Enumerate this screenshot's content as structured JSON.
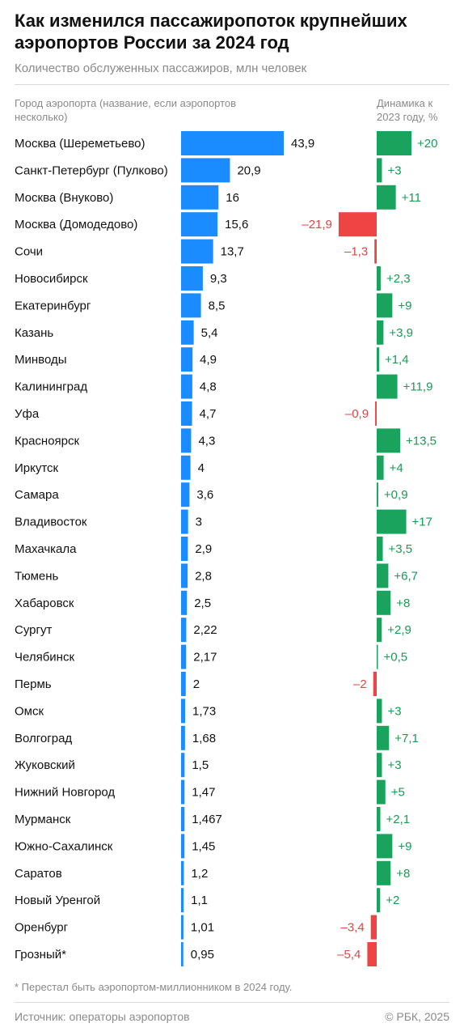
{
  "title": "Как изменился пассажиропоток крупнейших аэропортов России за 2024 год",
  "subtitle": "Количество обслуженных пассажиров, млн человек",
  "headers": {
    "city": "Город аэропорта (название, если аэропортов несколько)",
    "dynamics": "Динамика к 2023 году, %"
  },
  "footnote": "* Перестал быть аэропортом-миллионником в 2024 году.",
  "source": "Источник: операторы аэропортов",
  "copyright": "© РБК, 2025",
  "colors": {
    "passengers_bar": "#1a8cff",
    "growth_bar": "#1aa35c",
    "decline_bar": "#ee4444",
    "growth_text": "#1a9a55",
    "decline_text": "#e04444"
  },
  "chart_data": {
    "type": "bar",
    "orientation": "horizontal",
    "categories": [
      "Москва (Шереметьево)",
      "Санкт-Петербург (Пулково)",
      "Москва (Внуково)",
      "Москва (Домодедово)",
      "Сочи",
      "Новосибирск",
      "Екатеринбург",
      "Казань",
      "Минводы",
      "Калининград",
      "Уфа",
      "Красноярск",
      "Иркутск",
      "Самара",
      "Владивосток",
      "Махачкала",
      "Тюмень",
      "Хабаровск",
      "Сургут",
      "Челябинск",
      "Пермь",
      "Омск",
      "Волгоград",
      "Жуковский",
      "Нижний Новгород",
      "Мурманск",
      "Южно-Сахалинск",
      "Саратов",
      "Новый Уренгой",
      "Оренбург",
      "Грозный*"
    ],
    "series": [
      {
        "name": "Количество обслуженных пассажиров, млн человек",
        "values": [
          43.9,
          20.9,
          16,
          15.6,
          13.7,
          9.3,
          8.5,
          5.4,
          4.9,
          4.8,
          4.7,
          4.3,
          4,
          3.6,
          3,
          2.9,
          2.8,
          2.5,
          2.22,
          2.17,
          2,
          1.73,
          1.68,
          1.5,
          1.47,
          1.467,
          1.45,
          1.2,
          1.1,
          1.01,
          0.95
        ],
        "labels": [
          "43,9",
          "20,9",
          "16",
          "15,6",
          "13,7",
          "9,3",
          "8,5",
          "5,4",
          "4,9",
          "4,8",
          "4,7",
          "4,3",
          "4",
          "3,6",
          "3",
          "2,9",
          "2,8",
          "2,5",
          "2,22",
          "2,17",
          "2",
          "1,73",
          "1,68",
          "1,5",
          "1,47",
          "1,467",
          "1,45",
          "1,2",
          "1,1",
          "1,01",
          "0,95"
        ]
      },
      {
        "name": "Динамика к 2023 году, %",
        "values": [
          20,
          3,
          11,
          -21.9,
          -1.3,
          2.3,
          9,
          3.9,
          1.4,
          11.9,
          -0.9,
          13.5,
          4,
          0.9,
          17,
          3.5,
          6.7,
          8,
          2.9,
          0.5,
          -2,
          3,
          7.1,
          3,
          5,
          2.1,
          9,
          8,
          2,
          -3.4,
          -5.4
        ],
        "labels": [
          "+20",
          "+3",
          "+11",
          "–21,9",
          "–1,3",
          "+2,3",
          "+9",
          "+3,9",
          "+1,4",
          "+11,9",
          "–0,9",
          "+13,5",
          "+4",
          "+0,9",
          "+17",
          "+3,5",
          "+6,7",
          "+8",
          "+2,9",
          "+0,5",
          "–2",
          "+3",
          "+7,1",
          "+3",
          "+5",
          "+2,1",
          "+9",
          "+8",
          "+2",
          "–3,4",
          "–5,4"
        ]
      }
    ],
    "grid": false,
    "legend": "none"
  }
}
